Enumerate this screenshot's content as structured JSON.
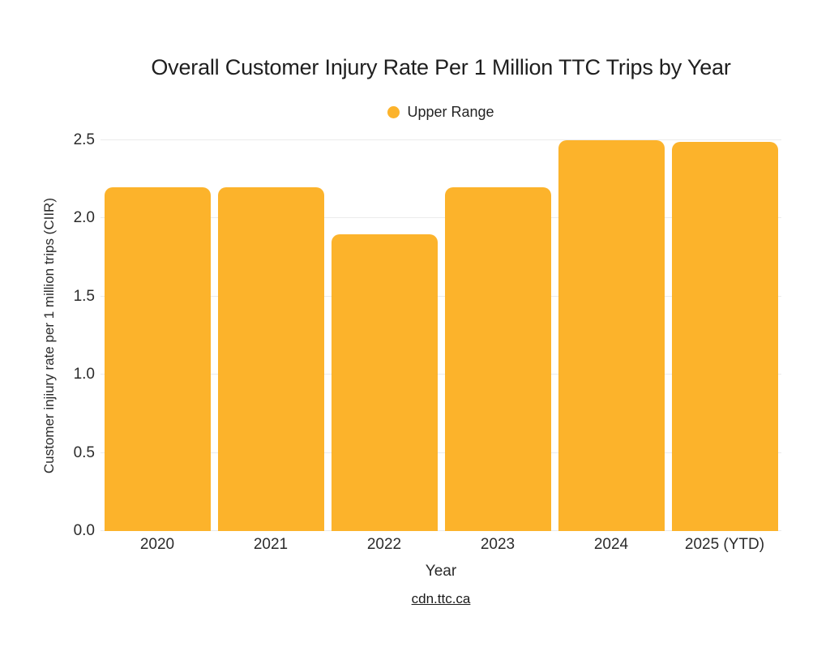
{
  "chart_data": {
    "type": "bar",
    "title": "Overall Customer Injury Rate Per 1 Million TTC Trips by Year",
    "legend": {
      "label": "Upper Range",
      "position": "top-center"
    },
    "categories": [
      "2020",
      "2021",
      "2022",
      "2023",
      "2024",
      "2025 (YTD)"
    ],
    "series": [
      {
        "name": "Upper Range",
        "color": "#FCB32B",
        "values": [
          2.2,
          2.2,
          1.9,
          2.2,
          2.5,
          2.49
        ]
      }
    ],
    "xlabel": "Year",
    "ylabel": "Customer injiury rate per 1 million trips (CIIR)",
    "ylim": [
      0,
      2.5
    ],
    "yticks": {
      "values": [
        0,
        0.5,
        1.0,
        1.5,
        2.0,
        2.5
      ],
      "labels": [
        "0.0",
        "0.5",
        "1.0",
        "1.5",
        "2.0",
        "2.5"
      ]
    },
    "grid": true,
    "grid_color": "#EBEBEB",
    "background": "#FFFFFF",
    "text_color": "#242424"
  },
  "footer": {
    "source_link": "cdn.ttc.ca"
  }
}
